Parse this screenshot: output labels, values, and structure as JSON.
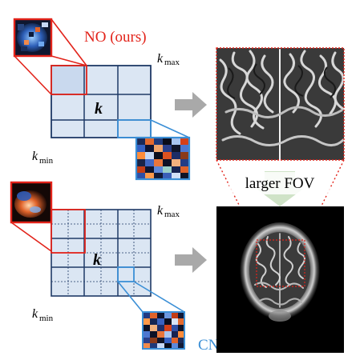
{
  "colors": {
    "no_red": "#e2231a",
    "cnn_blue": "#3b8fd6",
    "grid_fill": "#dbe6f3",
    "grid_line": "#1f3a66",
    "arrow_gray": "#a9a9a9",
    "fov_green": "#cfe3c7"
  },
  "top_panel": {
    "method_label": "NO (ours)",
    "k_center": "k",
    "k_max_base": "k",
    "k_max_sub": "max",
    "k_min_base": "k",
    "k_min_sub": "min"
  },
  "bottom_panel": {
    "method_label": "CNN",
    "k_center": "k",
    "k_max_base": "k",
    "k_max_sub": "max",
    "k_min_base": "k",
    "k_min_sub": "min"
  },
  "fov_label": "larger FOV",
  "icons": {
    "kernel_no": "no-kernel-thumbnail",
    "kernel_cnn": "cnn-kernel-thumbnail",
    "arrow": "right-arrow-icon",
    "fov_arrow": "down-arrow-icon",
    "mri_zoom": "mri-cortex-zoom-image",
    "mri_full": "mri-full-fov-image"
  }
}
